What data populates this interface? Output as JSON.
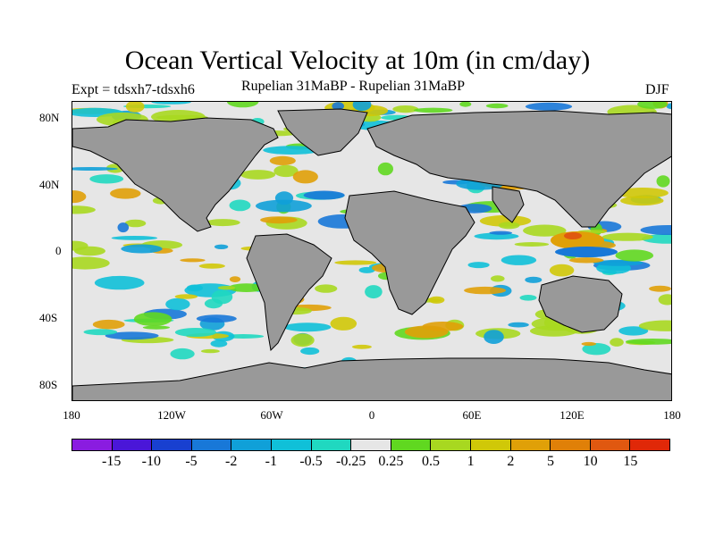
{
  "title": "Ocean Vertical Velocity at 10m (in cm/day)",
  "subtitle_left": "Expt = tdsxh7-tdsxh6",
  "subtitle_center": "Rupelian  31MaBP - Rupelian  31MaBP",
  "subtitle_right": "DJF",
  "lat_labels": [
    "80N",
    "40N",
    "0",
    "40S",
    "80S"
  ],
  "lon_labels": [
    "180",
    "120W",
    "60W",
    "0",
    "60E",
    "120E",
    "180"
  ],
  "colorbar": {
    "labels": [
      "-15",
      "-10",
      "-5",
      "-2",
      "-1",
      "-0.5",
      "-0.25",
      "0.25",
      "0.5",
      "1",
      "2",
      "5",
      "10",
      "15"
    ],
    "colors": [
      "#8a1ce0",
      "#4a16d8",
      "#1840d0",
      "#1878d8",
      "#10a0d8",
      "#10c0d8",
      "#20d8c0",
      "#e6e6e6",
      "#60d820",
      "#a8d820",
      "#d0c808",
      "#e0a008",
      "#e08008",
      "#e05810",
      "#e02808"
    ]
  },
  "colors": {
    "land": "#999999",
    "neutral": "#e6e6e6",
    "coast": "#000000"
  }
}
